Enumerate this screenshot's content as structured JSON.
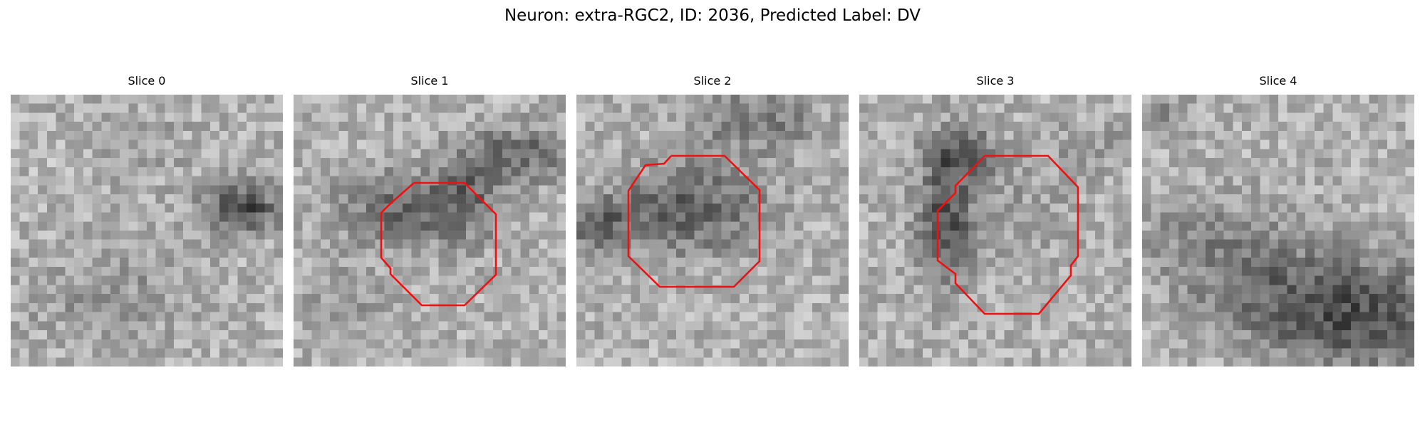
{
  "figure": {
    "title": "Neuron: extra-RGC2, ID: 2036, Predicted Label: DV"
  },
  "panels": [
    {
      "title": "Slice 0",
      "has_outline": false
    },
    {
      "title": "Slice 1",
      "has_outline": true
    },
    {
      "title": "Slice 2",
      "has_outline": true
    },
    {
      "title": "Slice 3",
      "has_outline": true
    },
    {
      "title": "Slice 4",
      "has_outline": false
    }
  ],
  "colors": {
    "outline": "#ee1111",
    "colormap": "gray"
  }
}
